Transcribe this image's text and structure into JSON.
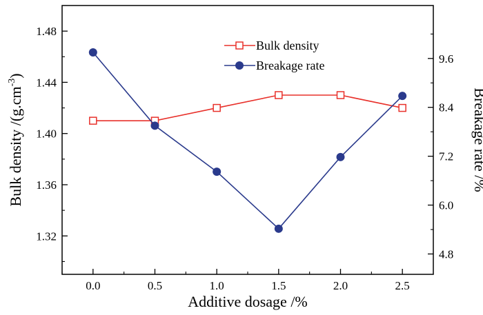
{
  "chart_data": {
    "type": "line",
    "title": "",
    "x": [
      0.0,
      0.5,
      1.0,
      1.5,
      2.0,
      2.5
    ],
    "x_tick_labels": [
      "0.0",
      "0.5",
      "1.0",
      "1.5",
      "2.0",
      "2.5"
    ],
    "xlabel": "Additive dosage /%",
    "xlim": [
      -0.25,
      2.75
    ],
    "ylabel_left": "Bulk density /(g.cm",
    "ylabel_left_sup": "-3",
    "ylabel_left_end": ")",
    "ylim_left": [
      1.29,
      1.5
    ],
    "y_left_ticks": [
      1.32,
      1.36,
      1.4,
      1.44,
      1.48
    ],
    "y_left_tick_labels": [
      "1.32",
      "1.36",
      "1.40",
      "1.44",
      "1.48"
    ],
    "ylabel_right": "Breakage rate /%",
    "ylim_right": [
      4.3,
      10.9
    ],
    "y_right_ticks": [
      4.8,
      6.0,
      7.2,
      8.4,
      9.6
    ],
    "y_right_tick_labels": [
      "4.8",
      "6.0",
      "7.2",
      "8.4",
      "9.6"
    ],
    "legend_position": "top-center",
    "series": [
      {
        "name": "Bulk density",
        "axis": "left",
        "color": "#e8302a",
        "marker": "open-square",
        "values": [
          1.41,
          1.41,
          1.42,
          1.43,
          1.43,
          1.42
        ]
      },
      {
        "name": "Breakage rate",
        "axis": "right",
        "color": "#2a3a8c",
        "marker": "filled-circle",
        "values": [
          9.75,
          7.95,
          6.82,
          5.42,
          7.18,
          8.68
        ]
      }
    ]
  }
}
